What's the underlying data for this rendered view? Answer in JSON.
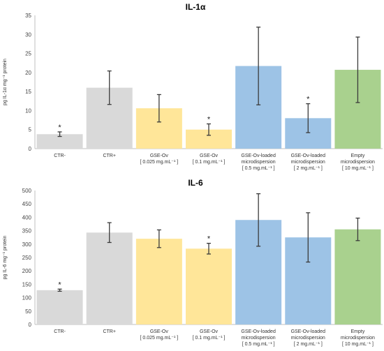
{
  "chart_data": [
    {
      "type": "bar",
      "title": "IL-1α",
      "ylabel": "pg IL-1α mg⁻¹ protein",
      "ylim": [
        0,
        35
      ],
      "yticks": [
        "0",
        "5",
        "10",
        "15",
        "20",
        "25",
        "30",
        "35"
      ],
      "categories": [
        [
          "CTR-"
        ],
        [
          "CTR+"
        ],
        [
          "GSE-Ov",
          "[ 0.025 mg.mL⁻¹ ]"
        ],
        [
          "GSE-Ov",
          "[ 0.1 mg.mL⁻¹ ]"
        ],
        [
          "GSE-Ov-loaded",
          "microdispersion",
          "[ 0.5 mg.mL⁻¹ ]"
        ],
        [
          "GSE-Ov-loaded",
          "microdispersion",
          "[ 2 mg.mL⁻¹ ]"
        ],
        [
          "Empty",
          "microdispersion",
          "[ 10 mg.mL⁻¹ ]"
        ]
      ],
      "values": [
        3.8,
        16.0,
        10.6,
        5.0,
        21.7,
        8.0,
        20.7
      ],
      "errors": [
        0.6,
        4.4,
        3.6,
        1.5,
        10.2,
        3.8,
        8.6
      ],
      "significant": [
        true,
        false,
        false,
        true,
        false,
        true,
        false
      ],
      "marker": "*",
      "colors": [
        "#d9d9d9",
        "#d9d9d9",
        "#ffe699",
        "#ffe699",
        "#9dc3e6",
        "#9dc3e6",
        "#a9d18e"
      ],
      "grid": false
    },
    {
      "type": "bar",
      "title": "IL-6",
      "ylabel": "pg IL-6 mg⁻¹ protein",
      "ylim": [
        0,
        500
      ],
      "yticks": [
        "0",
        "50",
        "100",
        "150",
        "200",
        "250",
        "300",
        "350",
        "400",
        "450",
        "500"
      ],
      "categories": [
        [
          "CTR-"
        ],
        [
          "CTR+"
        ],
        [
          "GSE-Ov",
          "[ 0.025 mg.mL⁻¹ ]"
        ],
        [
          "GSE-Ov",
          "[ 0.1 mg.mL⁻¹ ]"
        ],
        [
          "GSE-Ov-loaded",
          "microdispersion",
          "[ 0.5 mg.mL⁻¹ ]"
        ],
        [
          "GSE-Ov-loaded",
          "microdispersion",
          "[ 2 mg.mL⁻¹ ]"
        ],
        [
          "Empty",
          "microdispersion",
          "[ 10 mg.mL⁻¹ ]"
        ]
      ],
      "values": [
        128,
        343,
        320,
        283,
        390,
        325,
        355
      ],
      "errors": [
        4,
        37,
        33,
        20,
        98,
        92,
        42
      ],
      "significant": [
        true,
        false,
        false,
        true,
        false,
        false,
        false
      ],
      "marker": "*",
      "colors": [
        "#d9d9d9",
        "#d9d9d9",
        "#ffe699",
        "#ffe699",
        "#9dc3e6",
        "#9dc3e6",
        "#a9d18e"
      ],
      "grid": false
    }
  ]
}
